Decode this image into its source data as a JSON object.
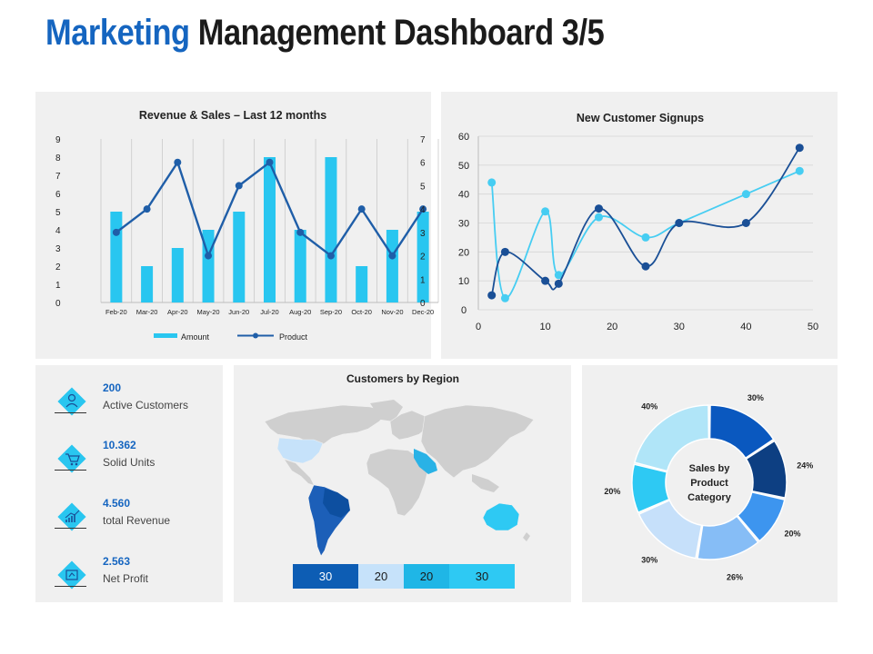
{
  "header": {
    "title_accent": "Marketing",
    "title_rest": "Management Dashboard 3/5"
  },
  "revenue_chart": {
    "title": "Revenue & Sales – Last 12 months",
    "legend_amount": "Amount",
    "legend_product": "Product",
    "colors": {
      "bar": "#29c6f0",
      "line": "#1f5ea8"
    }
  },
  "signups_chart": {
    "title": "New Customer Signups",
    "colors": {
      "light": "#46cdf2",
      "dark": "#1a4f96"
    }
  },
  "kpis": [
    {
      "value": "200",
      "label": "Active Customers",
      "icon": "customers-icon"
    },
    {
      "value": "10.362",
      "label": "Solid Units",
      "icon": "units-cart-icon"
    },
    {
      "value": "4.560",
      "label": "total Revenue",
      "icon": "revenue-chart-icon"
    },
    {
      "value": "2.563",
      "label": "Net Profit",
      "icon": "profit-icon"
    }
  ],
  "region_map": {
    "title": "Customers by Region",
    "legend": [
      {
        "value": "30",
        "color": "#0d5db4"
      },
      {
        "value": "20",
        "color": "#c6e2fa"
      },
      {
        "value": "20",
        "color": "#1fb6e6"
      },
      {
        "value": "30",
        "color": "#2ec9f3"
      }
    ]
  },
  "donut": {
    "center_line1": "Sales by",
    "center_line2": "Product",
    "center_line3": "Category"
  },
  "chart_data": [
    {
      "type": "bar",
      "title": "Revenue & Sales – Last 12 months",
      "categories": [
        "Feb-20",
        "Mar-20",
        "Apr-20",
        "May-20",
        "Jun-20",
        "Jul-20",
        "Aug-20",
        "Sep-20",
        "Oct-20",
        "Nov-20",
        "Dec-20"
      ],
      "series": [
        {
          "name": "Amount",
          "type": "bar",
          "axis": "left",
          "values": [
            5,
            2,
            3,
            4,
            5,
            8,
            4,
            8,
            2,
            4,
            5
          ]
        },
        {
          "name": "Product",
          "type": "line",
          "axis": "right",
          "values": [
            3,
            4,
            6,
            2,
            5,
            6,
            3,
            2,
            4,
            2,
            4
          ]
        }
      ],
      "ylim_left": [
        0,
        9
      ],
      "ylim_right": [
        0,
        7
      ],
      "yticks_left": [
        "0",
        "1",
        "2",
        "3",
        "4",
        "5",
        "6",
        "7",
        "8",
        "9"
      ],
      "yticks_right": [
        "0",
        "1",
        "2",
        "3",
        "4",
        "5",
        "6",
        "7"
      ],
      "legend": "bottom"
    },
    {
      "type": "line",
      "title": "New Customer Signups",
      "series": [
        {
          "name": "light",
          "x": [
            2,
            4,
            10,
            12,
            18,
            25,
            30,
            40,
            48
          ],
          "y": [
            44,
            4,
            34,
            12,
            32,
            25,
            30,
            40,
            48
          ]
        },
        {
          "name": "dark",
          "x": [
            2,
            4,
            10,
            12,
            18,
            25,
            30,
            40,
            48
          ],
          "y": [
            5,
            20,
            10,
            9,
            35,
            15,
            30,
            30,
            56
          ]
        }
      ],
      "xlim": [
        0,
        50
      ],
      "ylim": [
        0,
        60
      ],
      "xticks": [
        "0",
        "10",
        "20",
        "30",
        "40",
        "50"
      ],
      "yticks": [
        "0",
        "10",
        "20",
        "30",
        "40",
        "50",
        "60"
      ]
    },
    {
      "type": "pie",
      "title": "Sales by Product Category",
      "labels": [
        "30%",
        "24%",
        "20%",
        "26%",
        "30%",
        "20%",
        "40%"
      ],
      "values": [
        30,
        24,
        20,
        26,
        30,
        20,
        40
      ],
      "colors": [
        "#0a58bf",
        "#0d3f82",
        "#3d95ef",
        "#86bdf6",
        "#c6e0fa",
        "#2ec9f3",
        "#b0e5f8"
      ]
    }
  ]
}
